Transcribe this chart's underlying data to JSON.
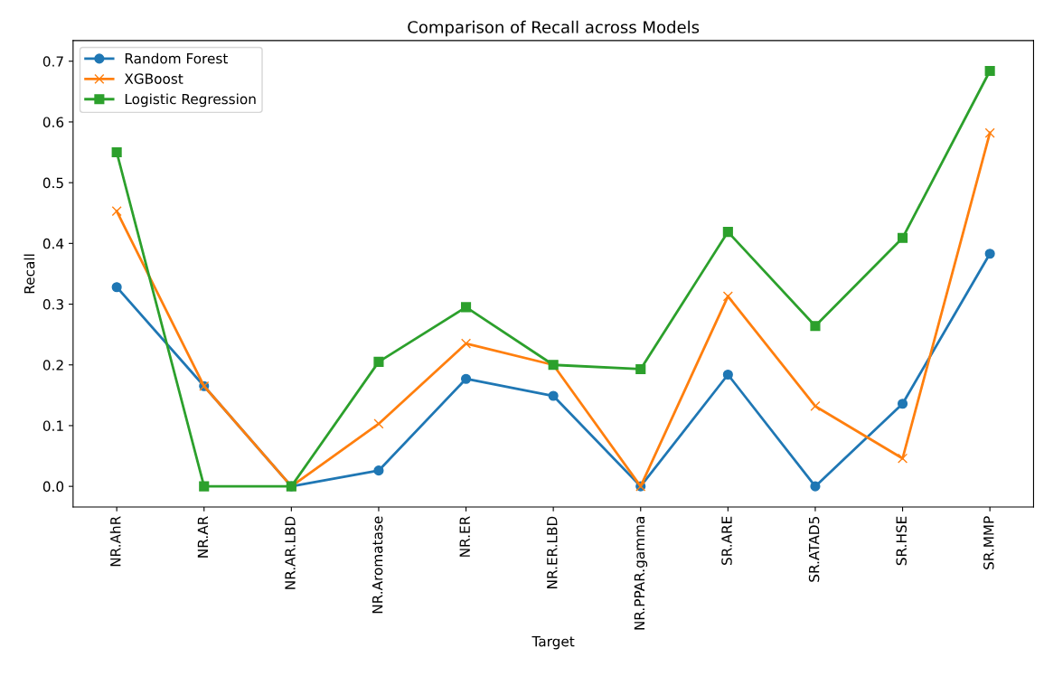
{
  "chart_data": {
    "type": "line",
    "title": "Comparison of Recall across Models",
    "xlabel": "Target",
    "ylabel": "Recall",
    "categories": [
      "NR.AhR",
      "NR.AR",
      "NR.AR.LBD",
      "NR.Aromatase",
      "NR.ER",
      "NR.ER.LBD",
      "NR.PPAR.gamma",
      "SR.ARE",
      "SR.ATAD5",
      "SR.HSE",
      "SR.MMP"
    ],
    "series": [
      {
        "name": "Random Forest",
        "color": "#1f77b4",
        "marker": "circle",
        "values": [
          0.328,
          0.165,
          0.0,
          0.026,
          0.177,
          0.149,
          0.0,
          0.184,
          0.0,
          0.136,
          0.383
        ]
      },
      {
        "name": "XGBoost",
        "color": "#ff7f0e",
        "marker": "cross",
        "values": [
          0.453,
          0.165,
          0.0,
          0.103,
          0.235,
          0.2,
          0.0,
          0.313,
          0.132,
          0.046,
          0.582
        ]
      },
      {
        "name": "Logistic Regression",
        "color": "#2ca02c",
        "marker": "square",
        "values": [
          0.55,
          0.0,
          0.0,
          0.205,
          0.295,
          0.2,
          0.193,
          0.419,
          0.264,
          0.409,
          0.684
        ]
      }
    ],
    "ylim": [
      -0.034,
      0.734
    ],
    "yticks": [
      {
        "value": 0,
        "label": "0.0"
      },
      0.1,
      0.2,
      0.3,
      0.4,
      0.5,
      0.6,
      0.7
    ],
    "grid": false,
    "legend": "top left",
    "line_style": "solid"
  }
}
